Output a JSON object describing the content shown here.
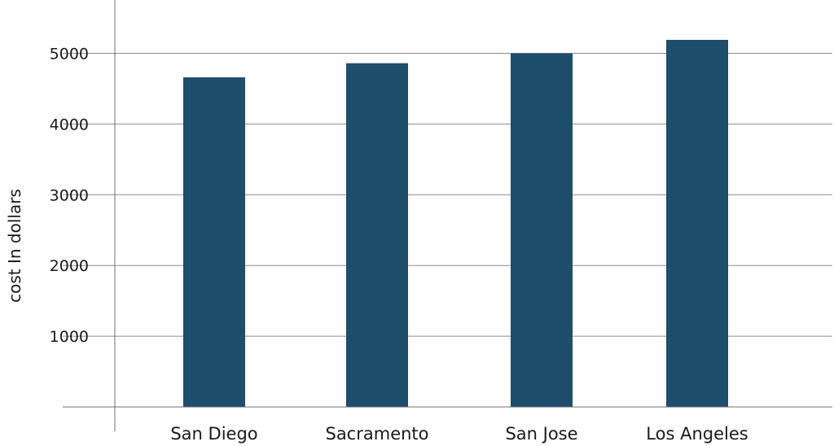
{
  "chart_data": {
    "type": "bar",
    "title": "",
    "xlabel": "",
    "ylabel": "cost In dollars",
    "categories": [
      "San Diego",
      "Sacramento",
      "San Jose",
      "Los Angeles"
    ],
    "values": [
      4660,
      4860,
      5000,
      5190
    ],
    "yticks": [
      1000,
      2000,
      3000,
      4000,
      5000
    ],
    "ylim": [
      0,
      5800
    ],
    "grid": true,
    "legend": "none",
    "bar_color": "#1d4e6b"
  }
}
